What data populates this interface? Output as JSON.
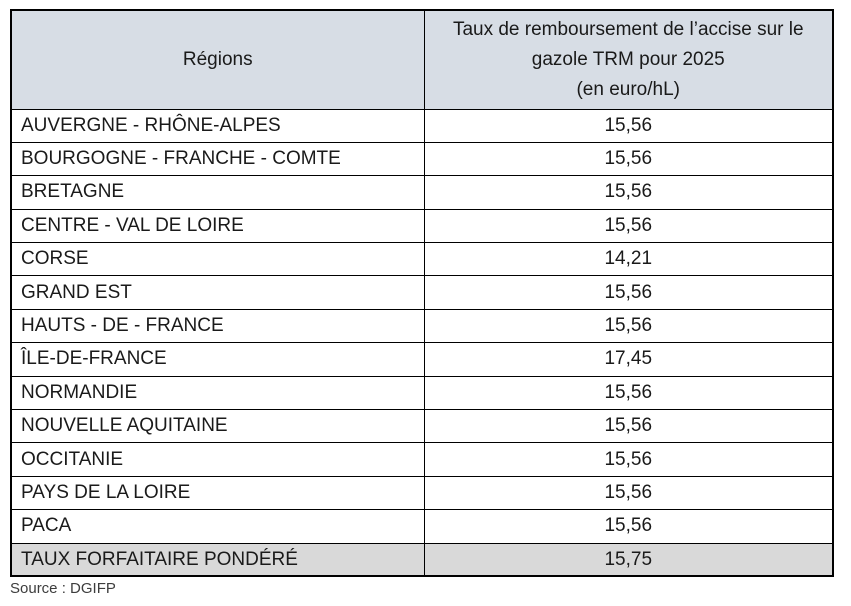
{
  "table": {
    "header": {
      "regions_label": "Régions",
      "rate_label_lines": [
        "Taux de remboursement de l’accise sur le",
        "gazole TRM pour 2025",
        "(en euro/hL)"
      ]
    },
    "rows": [
      {
        "region": "AUVERGNE - RHÔNE-ALPES",
        "rate": "15,56"
      },
      {
        "region": "BOURGOGNE - FRANCHE - COMTE",
        "rate": "15,56"
      },
      {
        "region": "BRETAGNE",
        "rate": "15,56"
      },
      {
        "region": "CENTRE - VAL DE LOIRE",
        "rate": "15,56"
      },
      {
        "region": "CORSE",
        "rate": "14,21"
      },
      {
        "region": "GRAND EST",
        "rate": "15,56"
      },
      {
        "region": "HAUTS - DE - FRANCE",
        "rate": "15,56"
      },
      {
        "region": "ÎLE-DE-FRANCE",
        "rate": "17,45"
      },
      {
        "region": "NORMANDIE",
        "rate": "15,56"
      },
      {
        "region": "NOUVELLE AQUITAINE",
        "rate": "15,56"
      },
      {
        "region": "OCCITANIE",
        "rate": "15,56"
      },
      {
        "region": "PAYS DE LA LOIRE",
        "rate": "15,56"
      },
      {
        "region": "PACA",
        "rate": "15,56"
      }
    ],
    "footer_row": {
      "region": "TAUX FORFAITAIRE PONDÉRÉ",
      "rate": "15,75"
    }
  },
  "source_label": "Source : DGIFP",
  "colors": {
    "header_bg": "#d7dde5",
    "footer_bg": "#d9d9d9",
    "border": "#000000"
  }
}
